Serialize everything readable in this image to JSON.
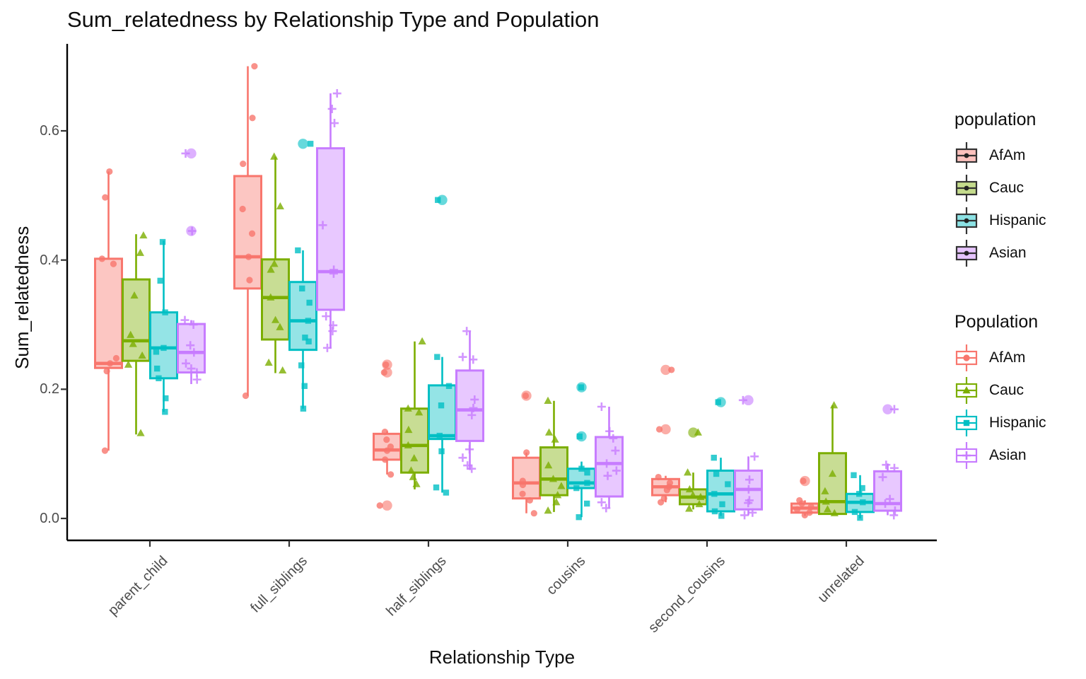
{
  "title": "Sum_relatedness by Relationship Type and Population",
  "axes": {
    "x_title": "Relationship Type",
    "y_title": "Sum_relatedness",
    "y_ticks": [
      "0.0",
      "0.2",
      "0.4",
      "0.6"
    ]
  },
  "legends": [
    {
      "title": "population",
      "style": "filled",
      "items": [
        {
          "label": "AfAm",
          "color": "#F8766D"
        },
        {
          "label": "Cauc",
          "color": "#7CAE00"
        },
        {
          "label": "Hispanic",
          "color": "#00BFC4"
        },
        {
          "label": "Asian",
          "color": "#C77CFF"
        }
      ]
    },
    {
      "title": "Population",
      "style": "outline",
      "items": [
        {
          "label": "AfAm",
          "color": "#F8766D",
          "shape": "circle"
        },
        {
          "label": "Cauc",
          "color": "#7CAE00",
          "shape": "triangle"
        },
        {
          "label": "Hispanic",
          "color": "#00BFC4",
          "shape": "square"
        },
        {
          "label": "Asian",
          "color": "#C77CFF",
          "shape": "plus"
        }
      ]
    }
  ],
  "chart_data": {
    "type": "boxplot",
    "title": "Sum_relatedness by Relationship Type and Population",
    "xlabel": "Relationship Type",
    "ylabel": "Sum_relatedness",
    "grid": false,
    "ylim": [
      0,
      0.72
    ],
    "y_tick_values": [
      0,
      0.2,
      0.4,
      0.6
    ],
    "categories": [
      "parent_child",
      "full_siblings",
      "half_siblings",
      "cousins",
      "second_cousins",
      "unrelated"
    ],
    "series": [
      {
        "name": "AfAm",
        "color": "#F8766D",
        "shape": "circle",
        "boxes": [
          {
            "category": "parent_child",
            "whislo": 0.105,
            "q1": 0.233,
            "med": 0.24,
            "q3": 0.402,
            "whishi": 0.537,
            "outliers": [],
            "points": [
              0.537,
              0.497,
              0.402,
              0.394,
              0.248,
              0.24,
              0.228,
              0.105
            ]
          },
          {
            "category": "full_siblings",
            "whislo": 0.19,
            "q1": 0.356,
            "med": 0.405,
            "q3": 0.53,
            "whishi": 0.7,
            "outliers": [],
            "points": [
              0.7,
              0.62,
              0.549,
              0.479,
              0.441,
              0.405,
              0.369,
              0.19
            ]
          },
          {
            "category": "half_siblings",
            "whislo": 0.068,
            "q1": 0.091,
            "med": 0.106,
            "q3": 0.131,
            "whishi": 0.135,
            "outliers": [
              0.238,
              0.226,
              0.02
            ],
            "points": [
              0.238,
              0.226,
              0.134,
              0.122,
              0.111,
              0.105,
              0.091,
              0.068,
              0.02
            ]
          },
          {
            "category": "cousins",
            "whislo": 0.008,
            "q1": 0.031,
            "med": 0.055,
            "q3": 0.094,
            "whishi": 0.102,
            "outliers": [
              0.19
            ],
            "points": [
              0.19,
              0.102,
              0.058,
              0.052,
              0.038,
              0.028,
              0.008
            ]
          },
          {
            "category": "second_cousins",
            "whislo": 0.025,
            "q1": 0.036,
            "med": 0.049,
            "q3": 0.061,
            "whishi": 0.066,
            "outliers": [
              0.23,
              0.138
            ],
            "points": [
              0.23,
              0.138,
              0.064,
              0.055,
              0.049,
              0.044,
              0.031,
              0.025
            ]
          },
          {
            "category": "unrelated",
            "whislo": 0.004,
            "q1": 0.009,
            "med": 0.016,
            "q3": 0.023,
            "whishi": 0.028,
            "outliers": [
              0.058
            ],
            "points": [
              0.058,
              0.028,
              0.023,
              0.018,
              0.014,
              0.009,
              0.005
            ]
          }
        ]
      },
      {
        "name": "Cauc",
        "color": "#7CAE00",
        "shape": "triangle",
        "boxes": [
          {
            "category": "parent_child",
            "whislo": 0.13,
            "q1": 0.244,
            "med": 0.275,
            "q3": 0.37,
            "whishi": 0.44,
            "outliers": [],
            "points": [
              0.438,
              0.411,
              0.345,
              0.284,
              0.27,
              0.252,
              0.238,
              0.132
            ]
          },
          {
            "category": "full_siblings",
            "whislo": 0.225,
            "q1": 0.277,
            "med": 0.342,
            "q3": 0.401,
            "whishi": 0.56,
            "outliers": [],
            "points": [
              0.56,
              0.483,
              0.394,
              0.385,
              0.342,
              0.307,
              0.296,
              0.241,
              0.229
            ]
          },
          {
            "category": "half_siblings",
            "whislo": 0.045,
            "q1": 0.071,
            "med": 0.113,
            "q3": 0.17,
            "whishi": 0.274,
            "outliers": [],
            "points": [
              0.274,
              0.17,
              0.164,
              0.137,
              0.113,
              0.093,
              0.074,
              0.064,
              0.053
            ]
          },
          {
            "category": "cousins",
            "whislo": 0.01,
            "q1": 0.036,
            "med": 0.061,
            "q3": 0.11,
            "whishi": 0.182,
            "outliers": [],
            "points": [
              0.182,
              0.133,
              0.122,
              0.082,
              0.061,
              0.05,
              0.036,
              0.025,
              0.012
            ]
          },
          {
            "category": "second_cousins",
            "whislo": 0.014,
            "q1": 0.022,
            "med": 0.033,
            "q3": 0.045,
            "whishi": 0.071,
            "outliers": [
              0.133
            ],
            "points": [
              0.133,
              0.071,
              0.045,
              0.036,
              0.033,
              0.022,
              0.015
            ]
          },
          {
            "category": "unrelated",
            "whislo": 0.005,
            "q1": 0.007,
            "med": 0.026,
            "q3": 0.101,
            "whishi": 0.175,
            "outliers": [],
            "points": [
              0.175,
              0.069,
              0.042,
              0.026,
              0.014,
              0.008
            ]
          }
        ]
      },
      {
        "name": "Hispanic",
        "color": "#00BFC4",
        "shape": "square",
        "boxes": [
          {
            "category": "parent_child",
            "whislo": 0.165,
            "q1": 0.217,
            "med": 0.264,
            "q3": 0.319,
            "whishi": 0.43,
            "outliers": [],
            "points": [
              0.428,
              0.368,
              0.319,
              0.264,
              0.258,
              0.232,
              0.217,
              0.186,
              0.165
            ]
          },
          {
            "category": "full_siblings",
            "whislo": 0.17,
            "q1": 0.261,
            "med": 0.306,
            "q3": 0.366,
            "whishi": 0.415,
            "outliers": [
              0.58
            ],
            "points": [
              0.58,
              0.415,
              0.356,
              0.334,
              0.306,
              0.28,
              0.274,
              0.237,
              0.205,
              0.17
            ]
          },
          {
            "category": "half_siblings",
            "whislo": 0.04,
            "q1": 0.123,
            "med": 0.128,
            "q3": 0.206,
            "whishi": 0.25,
            "outliers": [
              0.493
            ],
            "points": [
              0.493,
              0.25,
              0.205,
              0.175,
              0.128,
              0.104,
              0.048,
              0.04
            ]
          },
          {
            "category": "cousins",
            "whislo": 0.002,
            "q1": 0.047,
            "med": 0.055,
            "q3": 0.077,
            "whishi": 0.088,
            "outliers": [
              0.203,
              0.127
            ],
            "points": [
              0.203,
              0.127,
              0.077,
              0.071,
              0.055,
              0.047,
              0.023,
              0.002
            ]
          },
          {
            "category": "second_cousins",
            "whislo": 0.004,
            "q1": 0.011,
            "med": 0.038,
            "q3": 0.074,
            "whishi": 0.094,
            "outliers": [
              0.18
            ],
            "points": [
              0.18,
              0.094,
              0.069,
              0.053,
              0.038,
              0.022,
              0.011,
              0.004
            ]
          },
          {
            "category": "unrelated",
            "whislo": 0.0,
            "q1": 0.01,
            "med": 0.025,
            "q3": 0.038,
            "whishi": 0.067,
            "outliers": [],
            "points": [
              0.067,
              0.047,
              0.038,
              0.025,
              0.01,
              0.001
            ]
          }
        ]
      },
      {
        "name": "Asian",
        "color": "#C77CFF",
        "shape": "plus",
        "boxes": [
          {
            "category": "parent_child",
            "whislo": 0.208,
            "q1": 0.226,
            "med": 0.257,
            "q3": 0.301,
            "whishi": 0.307,
            "outliers": [
              0.565,
              0.445
            ],
            "points": [
              0.565,
              0.445,
              0.307,
              0.3,
              0.268,
              0.257,
              0.24,
              0.232,
              0.226,
              0.215
            ]
          },
          {
            "category": "full_siblings",
            "whislo": 0.263,
            "q1": 0.323,
            "med": 0.382,
            "q3": 0.573,
            "whishi": 0.658,
            "outliers": [],
            "points": [
              0.658,
              0.634,
              0.612,
              0.454,
              0.385,
              0.379,
              0.313,
              0.299,
              0.29,
              0.264
            ]
          },
          {
            "category": "half_siblings",
            "whislo": 0.075,
            "q1": 0.12,
            "med": 0.168,
            "q3": 0.229,
            "whishi": 0.29,
            "outliers": [],
            "points": [
              0.29,
              0.25,
              0.246,
              0.184,
              0.171,
              0.16,
              0.107,
              0.094,
              0.082,
              0.077
            ]
          },
          {
            "category": "cousins",
            "whislo": 0.016,
            "q1": 0.034,
            "med": 0.085,
            "q3": 0.126,
            "whishi": 0.173,
            "outliers": [],
            "points": [
              0.173,
              0.135,
              0.124,
              0.105,
              0.085,
              0.074,
              0.066,
              0.025,
              0.016
            ]
          },
          {
            "category": "second_cousins",
            "whislo": 0.005,
            "q1": 0.014,
            "med": 0.045,
            "q3": 0.074,
            "whishi": 0.096,
            "outliers": [
              0.183
            ],
            "points": [
              0.183,
              0.096,
              0.06,
              0.045,
              0.028,
              0.024,
              0.009,
              0.005
            ]
          },
          {
            "category": "unrelated",
            "whislo": 0.005,
            "q1": 0.012,
            "med": 0.023,
            "q3": 0.073,
            "whishi": 0.085,
            "outliers": [
              0.169
            ],
            "points": [
              0.169,
              0.083,
              0.078,
              0.064,
              0.03,
              0.023,
              0.012,
              0.005
            ]
          }
        ]
      }
    ]
  }
}
